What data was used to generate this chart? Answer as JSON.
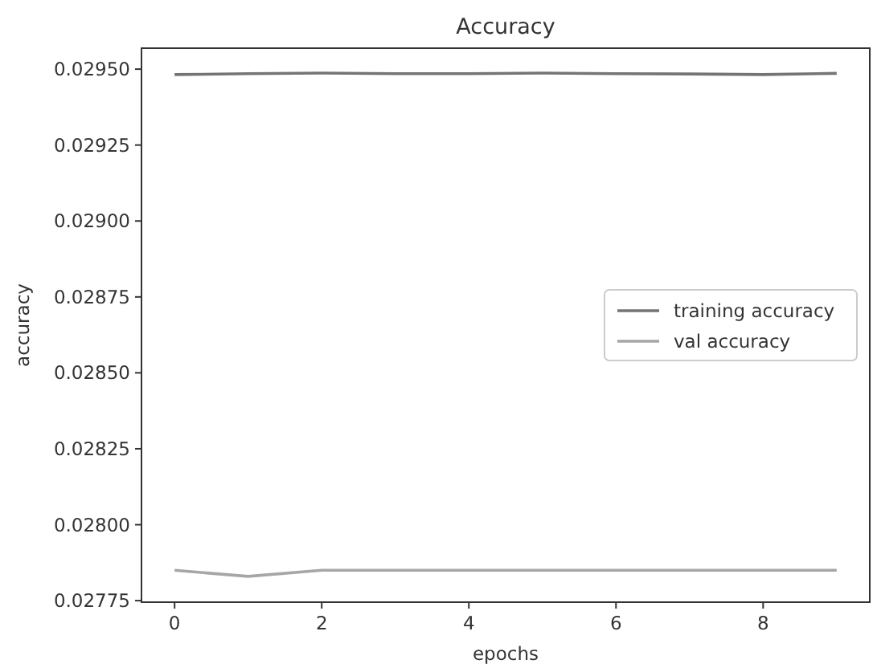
{
  "chart_data": {
    "type": "line",
    "title": "Accuracy",
    "xlabel": "epochs",
    "ylabel": "accuracy",
    "x": [
      0,
      1,
      2,
      3,
      4,
      5,
      6,
      7,
      8,
      9
    ],
    "series": [
      {
        "name": "training accuracy",
        "color": "#747474",
        "values": [
          0.029482,
          0.029485,
          0.029487,
          0.029485,
          0.029485,
          0.029487,
          0.029485,
          0.029484,
          0.029482,
          0.029486
        ]
      },
      {
        "name": "val accuracy",
        "color": "#a6a6a6",
        "values": [
          0.02785,
          0.02783,
          0.02785,
          0.02785,
          0.02785,
          0.02785,
          0.02785,
          0.02785,
          0.02785,
          0.02785
        ]
      }
    ],
    "xlim": [
      -0.45,
      9.45
    ],
    "xticks": [
      0,
      2,
      4,
      6,
      8
    ],
    "ylim": [
      0.027745,
      0.029569
    ],
    "yticks": [
      {
        "value": 0.02775,
        "label": "0.02775"
      },
      {
        "value": 0.028,
        "label": "0.02800"
      },
      {
        "value": 0.02825,
        "label": "0.02825"
      },
      {
        "value": 0.0285,
        "label": "0.02850"
      },
      {
        "value": 0.02875,
        "label": "0.02875"
      },
      {
        "value": 0.029,
        "label": "0.02900"
      },
      {
        "value": 0.02925,
        "label": "0.02925"
      },
      {
        "value": 0.0295,
        "label": "0.02950"
      }
    ],
    "legend": "right",
    "grid": false
  }
}
